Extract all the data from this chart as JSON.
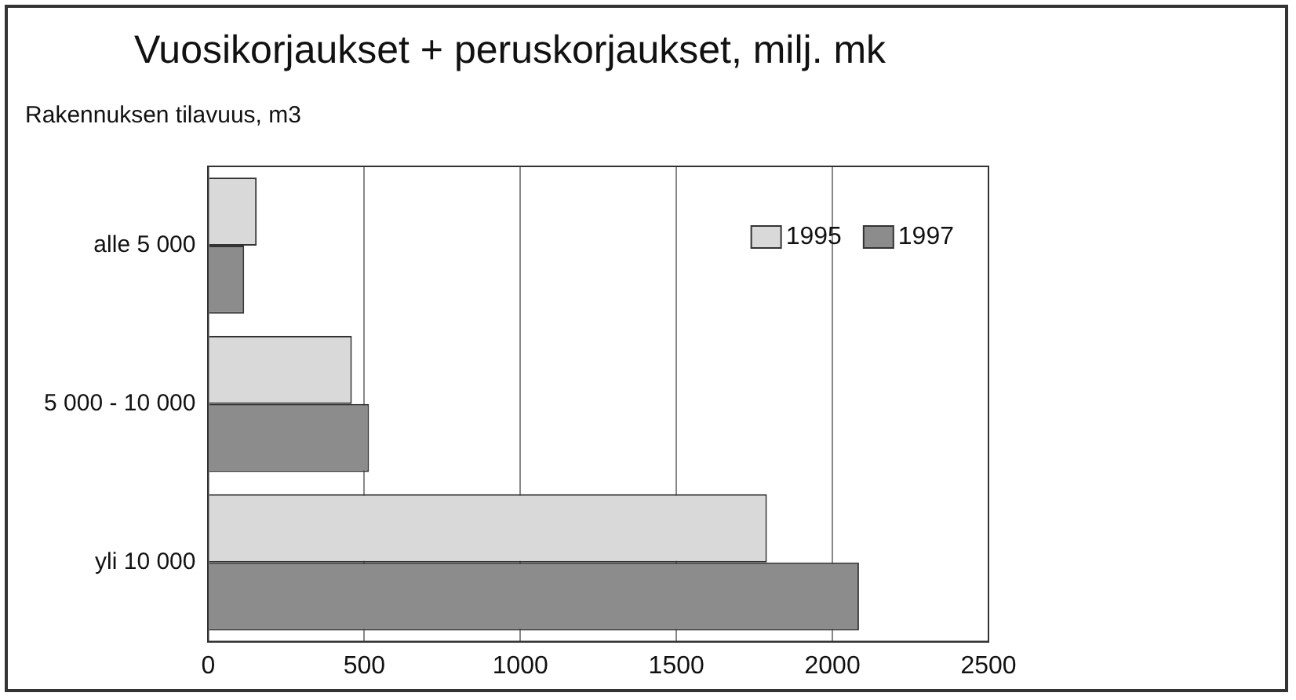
{
  "chart_data": {
    "type": "bar",
    "orientation": "horizontal",
    "title": "Vuosikorjaukset + peruskorjaukset, milj. mk",
    "ylabel": "Rakennuksen tilavuus, m3",
    "categories": [
      "alle 5 000",
      "5 000 - 10 000",
      "yli 10 000"
    ],
    "series": [
      {
        "name": "1995",
        "color": "#d9d9d9",
        "values": [
          155,
          460,
          1790
        ]
      },
      {
        "name": "1997",
        "color": "#8c8c8c",
        "values": [
          115,
          515,
          2085
        ]
      }
    ],
    "xlim": [
      0,
      2500
    ],
    "xticks": [
      0,
      500,
      1000,
      1500,
      2000,
      2500
    ],
    "grid": "x",
    "legend": "top right"
  }
}
